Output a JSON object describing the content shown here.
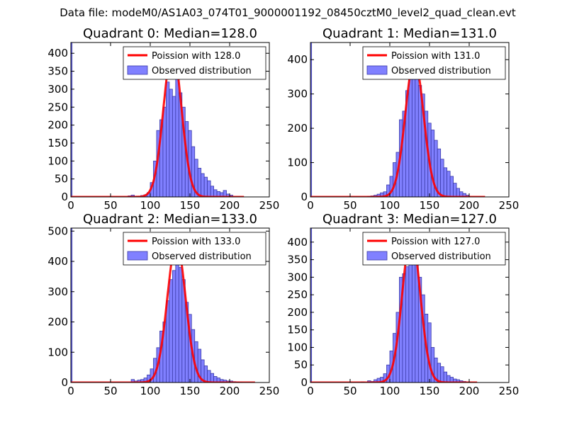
{
  "suptitle": "Data file: modeM0/AS1A03_074T01_9000001192_08450cztM0_level2_quad_clean.evt",
  "colors": {
    "bar_fill": "#8080ff",
    "bar_edge": "#3a3aa8",
    "curve": "#ff0000"
  },
  "chart_data": [
    {
      "type": "bar",
      "title": "Quadrant 0: Median=128.0",
      "xlim": [
        0,
        250
      ],
      "ylim": [
        0,
        430
      ],
      "xticks": [
        0,
        50,
        100,
        150,
        200,
        250
      ],
      "yticks": [
        0,
        50,
        100,
        150,
        200,
        250,
        300,
        350,
        400
      ],
      "legend": {
        "position": "top-right",
        "entries": [
          "Poission with 128.0",
          "Observed distribution"
        ]
      },
      "median": 128.0,
      "spike_at_zero": 430,
      "bin_width": 4,
      "bins": [
        [
          72,
          3
        ],
        [
          76,
          5
        ],
        [
          80,
          2
        ],
        [
          84,
          1
        ],
        [
          88,
          4
        ],
        [
          92,
          6
        ],
        [
          96,
          12
        ],
        [
          100,
          40
        ],
        [
          104,
          100
        ],
        [
          108,
          185
        ],
        [
          112,
          215
        ],
        [
          116,
          250
        ],
        [
          120,
          320
        ],
        [
          124,
          300
        ],
        [
          128,
          280
        ],
        [
          132,
          410
        ],
        [
          136,
          290
        ],
        [
          140,
          250
        ],
        [
          144,
          210
        ],
        [
          148,
          185
        ],
        [
          152,
          140
        ],
        [
          156,
          105
        ],
        [
          160,
          80
        ],
        [
          164,
          65
        ],
        [
          168,
          55
        ],
        [
          172,
          45
        ],
        [
          176,
          30
        ],
        [
          180,
          20
        ],
        [
          184,
          15
        ],
        [
          188,
          12
        ],
        [
          192,
          18
        ],
        [
          196,
          8
        ],
        [
          200,
          5
        ]
      ],
      "curve_range": [
        0,
        218
      ]
    },
    {
      "type": "bar",
      "title": "Quadrant 1: Median=131.0",
      "xlim": [
        0,
        250
      ],
      "ylim": [
        0,
        450
      ],
      "xticks": [
        0,
        50,
        100,
        150,
        200,
        250
      ],
      "yticks": [
        0,
        100,
        200,
        300,
        400
      ],
      "legend": {
        "position": "top-right",
        "entries": [
          "Poission with 131.0",
          "Observed distribution"
        ]
      },
      "median": 131.0,
      "spike_at_zero": 450,
      "bin_width": 4,
      "bins": [
        [
          72,
          2
        ],
        [
          76,
          3
        ],
        [
          80,
          5
        ],
        [
          84,
          8
        ],
        [
          88,
          12
        ],
        [
          92,
          15
        ],
        [
          96,
          35
        ],
        [
          100,
          60
        ],
        [
          104,
          100
        ],
        [
          108,
          130
        ],
        [
          112,
          225
        ],
        [
          116,
          250
        ],
        [
          120,
          310
        ],
        [
          124,
          380
        ],
        [
          128,
          400
        ],
        [
          132,
          390
        ],
        [
          136,
          325
        ],
        [
          140,
          300
        ],
        [
          144,
          250
        ],
        [
          148,
          215
        ],
        [
          152,
          195
        ],
        [
          156,
          165
        ],
        [
          160,
          140
        ],
        [
          164,
          110
        ],
        [
          168,
          85
        ],
        [
          172,
          75
        ],
        [
          176,
          60
        ],
        [
          180,
          40
        ],
        [
          184,
          25
        ],
        [
          188,
          15
        ],
        [
          192,
          10
        ],
        [
          196,
          5
        ]
      ],
      "curve_range": [
        0,
        220
      ]
    },
    {
      "type": "bar",
      "title": "Quadrant 2: Median=133.0",
      "xlim": [
        0,
        250
      ],
      "ylim": [
        0,
        510
      ],
      "xticks": [
        0,
        50,
        100,
        150,
        200,
        250
      ],
      "yticks": [
        0,
        100,
        200,
        300,
        400,
        500
      ],
      "legend": {
        "position": "top-right",
        "entries": [
          "Poission with 133.0",
          "Observed distribution"
        ]
      },
      "median": 133.0,
      "spike_at_zero": 510,
      "bin_width": 4,
      "bins": [
        [
          76,
          10
        ],
        [
          80,
          5
        ],
        [
          84,
          8
        ],
        [
          88,
          10
        ],
        [
          92,
          15
        ],
        [
          96,
          25
        ],
        [
          100,
          45
        ],
        [
          104,
          80
        ],
        [
          108,
          115
        ],
        [
          112,
          170
        ],
        [
          116,
          200
        ],
        [
          120,
          270
        ],
        [
          124,
          340
        ],
        [
          128,
          370
        ],
        [
          132,
          460
        ],
        [
          136,
          380
        ],
        [
          140,
          340
        ],
        [
          144,
          265
        ],
        [
          148,
          225
        ],
        [
          152,
          175
        ],
        [
          156,
          135
        ],
        [
          160,
          110
        ],
        [
          164,
          75
        ],
        [
          168,
          55
        ],
        [
          172,
          40
        ],
        [
          176,
          30
        ],
        [
          180,
          20
        ],
        [
          184,
          15
        ],
        [
          188,
          10
        ],
        [
          192,
          8
        ],
        [
          196,
          5
        ],
        [
          200,
          5
        ],
        [
          204,
          3
        ],
        [
          208,
          2
        ],
        [
          212,
          1
        ]
      ],
      "curve_range": [
        0,
        232
      ]
    },
    {
      "type": "bar",
      "title": "Quadrant 3: Median=127.0",
      "xlim": [
        0,
        250
      ],
      "ylim": [
        0,
        440
      ],
      "xticks": [
        0,
        50,
        100,
        150,
        200,
        250
      ],
      "yticks": [
        0,
        50,
        100,
        150,
        200,
        250,
        300,
        350,
        400
      ],
      "legend": {
        "position": "top-right",
        "entries": [
          "Poission with 127.0",
          "Observed distribution"
        ]
      },
      "median": 127.0,
      "spike_at_zero": 440,
      "bin_width": 4,
      "bins": [
        [
          64,
          2
        ],
        [
          72,
          5
        ],
        [
          76,
          3
        ],
        [
          80,
          8
        ],
        [
          84,
          12
        ],
        [
          88,
          15
        ],
        [
          92,
          25
        ],
        [
          96,
          50
        ],
        [
          100,
          90
        ],
        [
          104,
          140
        ],
        [
          108,
          200
        ],
        [
          112,
          300
        ],
        [
          116,
          310
        ],
        [
          120,
          330
        ],
        [
          124,
          365
        ],
        [
          128,
          420
        ],
        [
          132,
          345
        ],
        [
          136,
          300
        ],
        [
          140,
          250
        ],
        [
          144,
          195
        ],
        [
          148,
          170
        ],
        [
          152,
          100
        ],
        [
          156,
          70
        ],
        [
          160,
          55
        ],
        [
          164,
          45
        ],
        [
          168,
          30
        ],
        [
          172,
          20
        ],
        [
          176,
          15
        ],
        [
          180,
          10
        ],
        [
          184,
          8
        ],
        [
          188,
          5
        ],
        [
          192,
          3
        ]
      ],
      "curve_range": [
        0,
        210
      ]
    }
  ]
}
